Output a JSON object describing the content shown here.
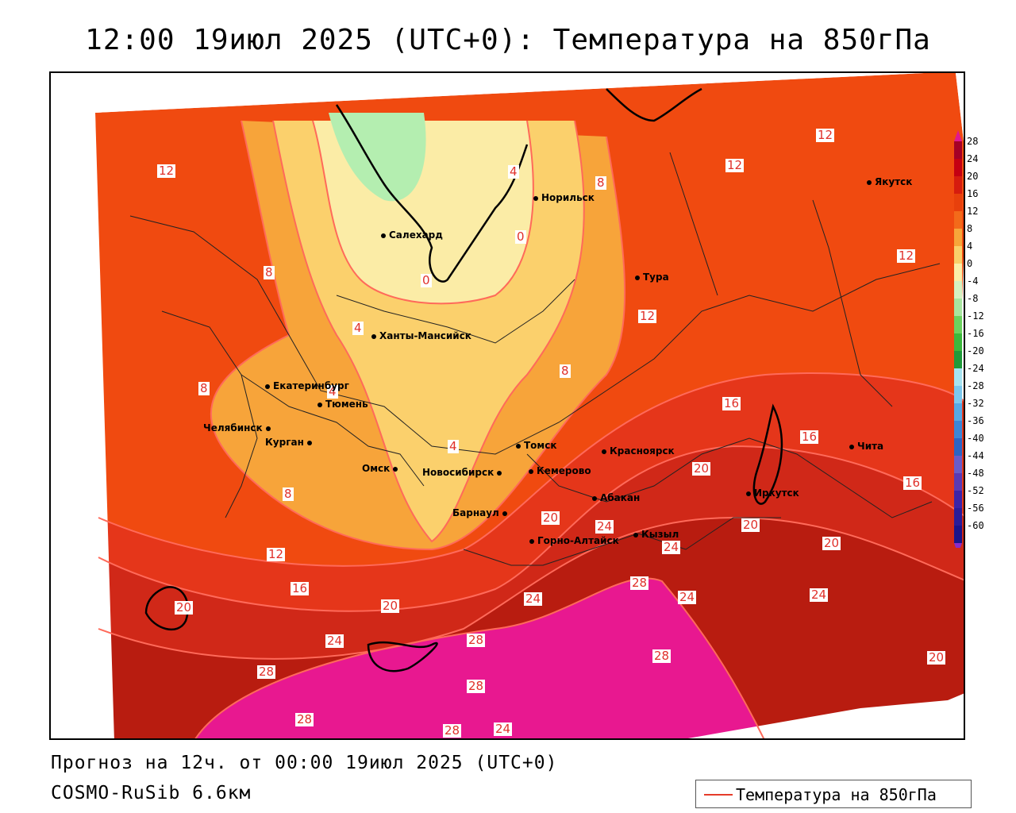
{
  "title": "12:00 19июл 2025 (UTC+0): Температура на 850гПа",
  "footer": {
    "forecast": "Прогноз на 12ч. от 00:00 19июл 2025 (UTC+0)",
    "model": "COSMO-RuSib 6.6км"
  },
  "legend": {
    "label": "Температура на 850гПа",
    "line_color": "#e53c2a"
  },
  "colorbar": {
    "ticks": [
      "28",
      "24",
      "20",
      "16",
      "12",
      "8",
      "4",
      "0",
      "-4",
      "-8",
      "-12",
      "-16",
      "-20",
      "-24",
      "-28",
      "-32",
      "-36",
      "-40",
      "-44",
      "-48",
      "-52",
      "-56",
      "-60"
    ],
    "colors": [
      "#a50026",
      "#c40012",
      "#d61c0e",
      "#e8400c",
      "#f36a1a",
      "#f7a63a",
      "#f9d06a",
      "#fbeea8",
      "#d5f2c2",
      "#a8e6a0",
      "#6cd25e",
      "#3cb83c",
      "#1f9a3a",
      "#a6e4f2",
      "#7cc8ee",
      "#58a8e4",
      "#3c86d6",
      "#2c64c4",
      "#6a5cc8",
      "#5a3ab4",
      "#3c24a8",
      "#2a1c98",
      "#1a148a"
    ]
  },
  "cities": [
    {
      "name": "Норильск"
    },
    {
      "name": "Салехард"
    },
    {
      "name": "Якутск"
    },
    {
      "name": "Тура"
    },
    {
      "name": "Ханты-Мансийск"
    },
    {
      "name": "Екатеринбург"
    },
    {
      "name": "Тюмень"
    },
    {
      "name": "Челябинск"
    },
    {
      "name": "Курган"
    },
    {
      "name": "Омск"
    },
    {
      "name": "Новосибирск"
    },
    {
      "name": "Томск"
    },
    {
      "name": "Кемерово"
    },
    {
      "name": "Красноярск"
    },
    {
      "name": "Абакан"
    },
    {
      "name": "Барнаул"
    },
    {
      "name": "Горно-Алтайск"
    },
    {
      "name": "Кызыл"
    },
    {
      "name": "Иркутск"
    },
    {
      "name": "Чита"
    }
  ],
  "isotherm_labels": [
    "12",
    "12",
    "12",
    "12",
    "12",
    "12",
    "8",
    "8",
    "8",
    "8",
    "8",
    "4",
    "4",
    "4",
    "4",
    "0",
    "0",
    "16",
    "16",
    "16",
    "16",
    "20",
    "20",
    "20",
    "20",
    "20",
    "20",
    "20",
    "24",
    "24",
    "24",
    "24",
    "24",
    "24",
    "24",
    "28",
    "28",
    "28",
    "28",
    "28",
    "28",
    "28"
  ]
}
